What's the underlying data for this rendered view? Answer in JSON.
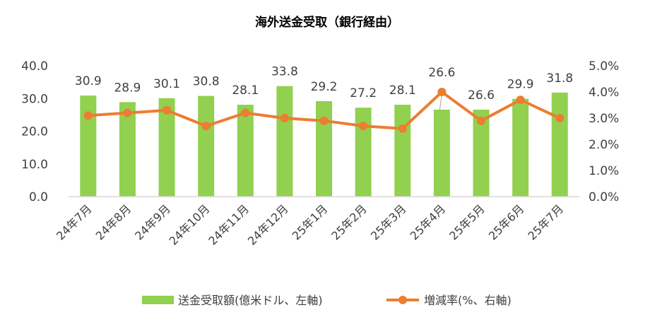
{
  "chart_data": {
    "type": "bar+line",
    "title": "海外送金受取（銀行経由）",
    "categories": [
      "24年7月",
      "24年8月",
      "24年9月",
      "24年10月",
      "24年11月",
      "24年12月",
      "25年1月",
      "25年2月",
      "25年3月",
      "25年4月",
      "25年5月",
      "25年6月",
      "25年7月"
    ],
    "series": [
      {
        "name": "送金受取額(億米ドル、左軸)",
        "type": "bar",
        "axis": "left",
        "color": "#92D050",
        "values": [
          30.9,
          28.9,
          30.1,
          30.8,
          28.1,
          33.8,
          29.2,
          27.2,
          28.1,
          26.6,
          26.6,
          29.9,
          31.8
        ],
        "labels": [
          "30.9",
          "28.9",
          "30.1",
          "30.8",
          "28.1",
          "33.8",
          "29.2",
          "27.2",
          "28.1",
          "26.6",
          "26.6",
          "29.9",
          "31.8"
        ]
      },
      {
        "name": "増減率(%、右軸)",
        "type": "line",
        "axis": "right",
        "color": "#ED7D31",
        "values": [
          3.1,
          3.2,
          3.3,
          2.7,
          3.2,
          3.0,
          2.9,
          2.7,
          2.6,
          4.0,
          2.9,
          3.7,
          3.0
        ]
      }
    ],
    "y_left": {
      "range": [
        0,
        40
      ],
      "ticks": [
        "0.0",
        "10.0",
        "20.0",
        "30.0",
        "40.0"
      ]
    },
    "y_right": {
      "range": [
        0,
        5
      ],
      "ticks": [
        "0.0%",
        "1.0%",
        "2.0%",
        "3.0%",
        "4.0%",
        "5.0%"
      ]
    },
    "legend": "bottom",
    "grid": false
  }
}
